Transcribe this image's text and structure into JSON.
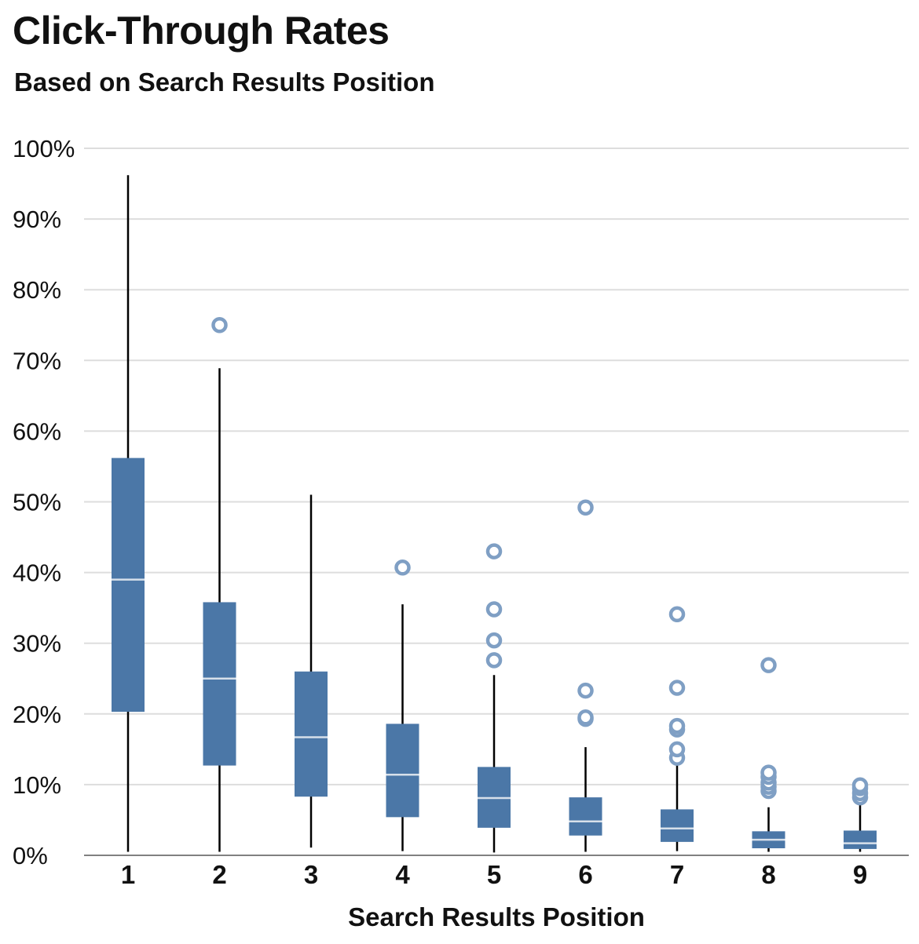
{
  "chart_data": {
    "type": "boxplot",
    "title": "Click-Through Rates",
    "subtitle": "Based on Search Results Position",
    "xlabel": "Search Results Position",
    "ylabel": "",
    "ylim": [
      0,
      100
    ],
    "y_ticks": [
      "0%",
      "10%",
      "20%",
      "30%",
      "40%",
      "50%",
      "60%",
      "70%",
      "80%",
      "90%",
      "100%"
    ],
    "grid": true,
    "colors": {
      "box": "#4b77a7",
      "outlier": "#7f9fc4",
      "median": "#d7e0ea",
      "whisker": "#000000",
      "grid": "#dddddd",
      "axis": "#808080"
    },
    "boxes": [
      {
        "position": "1",
        "whisker_low": 0.5,
        "q1": 20.3,
        "median": 39.0,
        "q3": 56.2,
        "whisker_high": 96.2,
        "outliers": []
      },
      {
        "position": "2",
        "whisker_low": 0.5,
        "q1": 12.7,
        "median": 25.0,
        "q3": 35.8,
        "whisker_high": 68.9,
        "outliers": [
          75.0
        ]
      },
      {
        "position": "3",
        "whisker_low": 1.1,
        "q1": 8.3,
        "median": 16.7,
        "q3": 26.0,
        "whisker_high": 51.0,
        "outliers": []
      },
      {
        "position": "4",
        "whisker_low": 0.6,
        "q1": 5.4,
        "median": 11.4,
        "q3": 18.6,
        "whisker_high": 35.5,
        "outliers": [
          40.7
        ]
      },
      {
        "position": "5",
        "whisker_low": 0.4,
        "q1": 3.9,
        "median": 8.1,
        "q3": 12.5,
        "whisker_high": 25.5,
        "outliers": [
          27.6,
          30.4,
          34.8,
          43.0
        ]
      },
      {
        "position": "6",
        "whisker_low": 0.5,
        "q1": 2.8,
        "median": 4.8,
        "q3": 8.2,
        "whisker_high": 15.3,
        "outliers": [
          19.3,
          19.5,
          23.3,
          49.2
        ]
      },
      {
        "position": "7",
        "whisker_low": 0.6,
        "q1": 1.9,
        "median": 3.8,
        "q3": 6.5,
        "whisker_high": 13.0,
        "outliers": [
          13.8,
          15.0,
          17.8,
          18.3,
          23.7,
          34.1
        ]
      },
      {
        "position": "8",
        "whisker_low": 0.5,
        "q1": 1.0,
        "median": 2.2,
        "q3": 3.4,
        "whisker_high": 6.8,
        "outliers": [
          9.1,
          9.7,
          10.3,
          11.1,
          11.7,
          26.9
        ]
      },
      {
        "position": "9",
        "whisker_low": 0.5,
        "q1": 0.9,
        "median": 1.7,
        "q3": 3.5,
        "whisker_high": 7.2,
        "outliers": [
          8.2,
          8.8,
          9.5,
          9.9
        ]
      }
    ]
  }
}
